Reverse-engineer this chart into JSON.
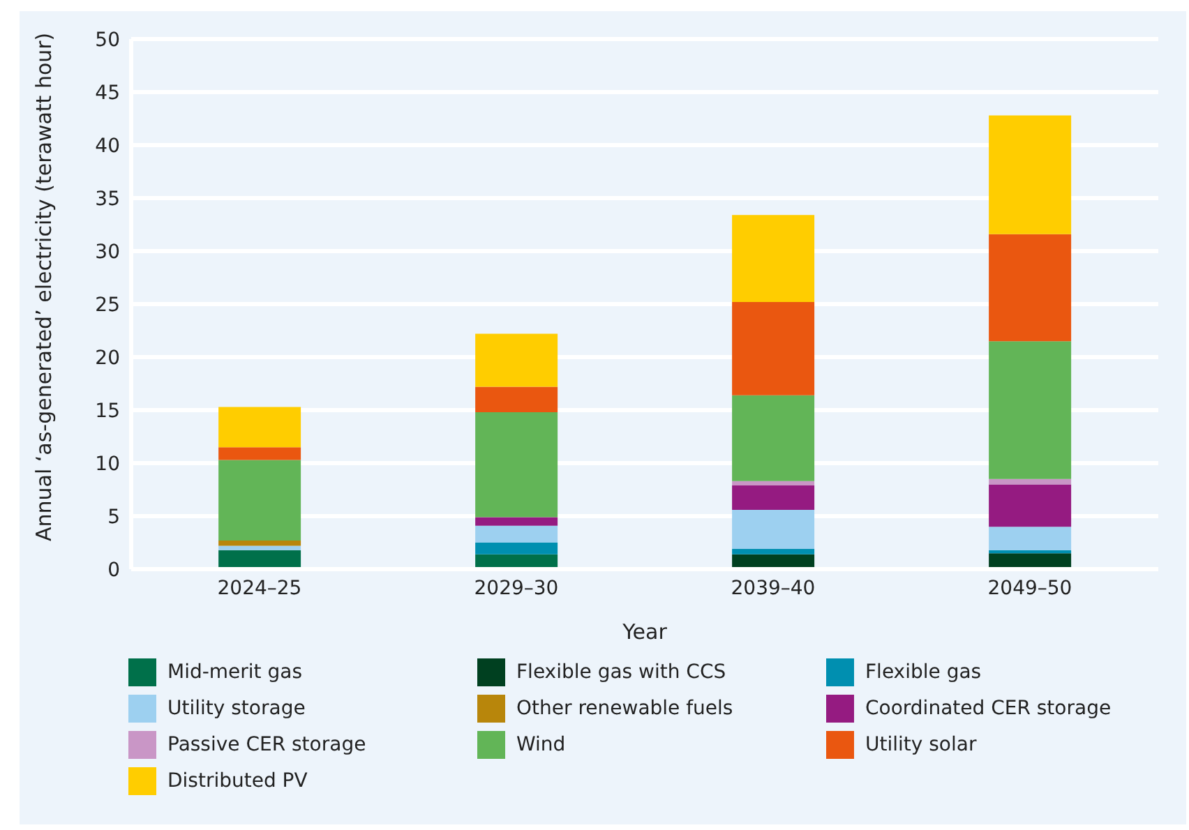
{
  "chart_data": {
    "type": "bar",
    "stacked": true,
    "xlabel": "Year",
    "ylabel": "Annual ‘as-generated’ electricity (terawatt hour)",
    "categories": [
      "2024–25",
      "2029–30",
      "2039–40",
      "2049–50"
    ],
    "ylim": [
      0,
      50
    ],
    "yticks": [
      0,
      5,
      10,
      15,
      20,
      25,
      30,
      35,
      40,
      45,
      50
    ],
    "grid": "y",
    "legend": "bottom",
    "series": [
      {
        "name": "Mid-merit gas",
        "color": "#00704a",
        "values": [
          1.8,
          1.4,
          0,
          0
        ]
      },
      {
        "name": "Flexible gas with CCS",
        "color": "#004020",
        "values": [
          0,
          0,
          1.4,
          1.5
        ]
      },
      {
        "name": "Flexible gas",
        "color": "#008fb0",
        "values": [
          0,
          1.1,
          0.5,
          0.3
        ]
      },
      {
        "name": "Utility storage",
        "color": "#9dd0f0",
        "values": [
          0.4,
          1.6,
          3.7,
          2.2
        ]
      },
      {
        "name": "Other renewable fuels",
        "color": "#b8860b",
        "values": [
          0.5,
          0,
          0,
          0
        ]
      },
      {
        "name": "Coordinated CER storage",
        "color": "#951b81",
        "values": [
          0,
          0.8,
          2.3,
          4.0
        ]
      },
      {
        "name": "Passive CER storage",
        "color": "#c996c6",
        "values": [
          0,
          0,
          0.4,
          0.5
        ]
      },
      {
        "name": "Wind",
        "color": "#62b557",
        "values": [
          7.6,
          9.9,
          8.1,
          13.0
        ]
      },
      {
        "name": "Utility solar",
        "color": "#ea5710",
        "values": [
          1.2,
          2.4,
          8.8,
          10.1
        ]
      },
      {
        "name": "Distributed PV",
        "color": "#ffcd00",
        "values": [
          3.8,
          5.0,
          8.2,
          11.2
        ]
      }
    ]
  }
}
